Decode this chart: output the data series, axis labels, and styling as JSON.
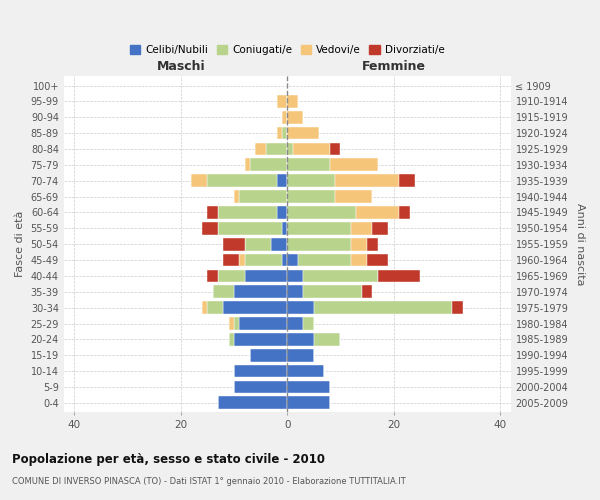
{
  "age_groups": [
    "0-4",
    "5-9",
    "10-14",
    "15-19",
    "20-24",
    "25-29",
    "30-34",
    "35-39",
    "40-44",
    "45-49",
    "50-54",
    "55-59",
    "60-64",
    "65-69",
    "70-74",
    "75-79",
    "80-84",
    "85-89",
    "90-94",
    "95-99",
    "100+"
  ],
  "birth_years": [
    "2005-2009",
    "2000-2004",
    "1995-1999",
    "1990-1994",
    "1985-1989",
    "1980-1984",
    "1975-1979",
    "1970-1974",
    "1965-1969",
    "1960-1964",
    "1955-1959",
    "1950-1954",
    "1945-1949",
    "1940-1944",
    "1935-1939",
    "1930-1934",
    "1925-1929",
    "1920-1924",
    "1915-1919",
    "1910-1914",
    "≤ 1909"
  ],
  "maschi": {
    "celibi": [
      13,
      10,
      10,
      7,
      10,
      9,
      12,
      10,
      8,
      1,
      3,
      1,
      2,
      0,
      2,
      0,
      0,
      0,
      0,
      0,
      0
    ],
    "coniugati": [
      0,
      0,
      0,
      0,
      1,
      1,
      3,
      4,
      5,
      7,
      5,
      12,
      11,
      9,
      13,
      7,
      4,
      1,
      0,
      0,
      0
    ],
    "vedovi": [
      0,
      0,
      0,
      0,
      0,
      1,
      1,
      0,
      0,
      1,
      0,
      0,
      0,
      1,
      3,
      1,
      2,
      1,
      1,
      2,
      0
    ],
    "divorziati": [
      0,
      0,
      0,
      0,
      0,
      0,
      0,
      0,
      2,
      3,
      4,
      3,
      2,
      0,
      0,
      0,
      0,
      0,
      0,
      0,
      0
    ]
  },
  "femmine": {
    "nubili": [
      8,
      8,
      7,
      5,
      5,
      3,
      5,
      3,
      3,
      2,
      0,
      0,
      0,
      0,
      0,
      0,
      0,
      0,
      0,
      0,
      0
    ],
    "coniugate": [
      0,
      0,
      0,
      0,
      5,
      2,
      26,
      11,
      14,
      10,
      12,
      12,
      13,
      9,
      9,
      8,
      1,
      0,
      0,
      0,
      0
    ],
    "vedove": [
      0,
      0,
      0,
      0,
      0,
      0,
      0,
      0,
      0,
      3,
      3,
      4,
      8,
      7,
      12,
      9,
      7,
      6,
      3,
      2,
      0
    ],
    "divorziate": [
      0,
      0,
      0,
      0,
      0,
      0,
      2,
      2,
      8,
      4,
      2,
      3,
      2,
      0,
      3,
      0,
      2,
      0,
      0,
      0,
      0
    ]
  },
  "colors": {
    "celibi_nubili": "#4472c4",
    "coniugati": "#b8d48c",
    "vedovi": "#f5c57a",
    "divorziati": "#c0392b"
  },
  "title": "Popolazione per età, sesso e stato civile - 2010",
  "subtitle": "COMUNE DI INVERSO PINASCA (TO) - Dati ISTAT 1° gennaio 2010 - Elaborazione TUTTITALIA.IT",
  "xlabel_left": "Maschi",
  "xlabel_right": "Femmine",
  "ylabel_left": "Fasce di età",
  "ylabel_right": "Anni di nascita",
  "xlim": [
    -42,
    42
  ],
  "background_color": "#f0f0f0",
  "plot_bg_color": "#ffffff",
  "legend_labels": [
    "Celibi/Nubili",
    "Coniugati/e",
    "Vedovi/e",
    "Divorziati/e"
  ]
}
